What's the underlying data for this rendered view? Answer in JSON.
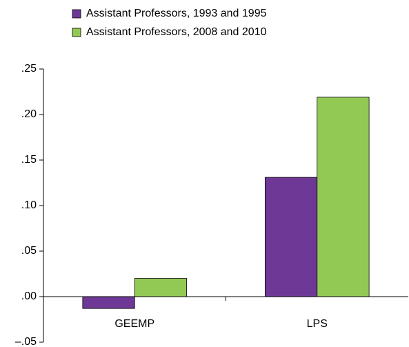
{
  "chart_data": {
    "type": "bar",
    "categories": [
      "GEEMP",
      "LPS"
    ],
    "series": [
      {
        "name": "Assistant Professors, 1993 and 1995",
        "color": "#6e3996",
        "values": [
          -0.013,
          0.131
        ]
      },
      {
        "name": "Assistant Professors, 2008 and 2010",
        "color": "#92c955",
        "values": [
          0.02,
          0.219
        ]
      }
    ],
    "ylim": [
      -0.05,
      0.25
    ],
    "yticks": [
      {
        "value": -0.05,
        "label": "–.05"
      },
      {
        "value": 0,
        "label": ".00"
      },
      {
        "value": 0.05,
        "label": ".05"
      },
      {
        "value": 0.1,
        "label": ".10"
      },
      {
        "value": 0.15,
        "label": ".15"
      },
      {
        "value": 0.2,
        "label": ".20"
      },
      {
        "value": 0.25,
        "label": ".25"
      }
    ],
    "legend": "top"
  }
}
